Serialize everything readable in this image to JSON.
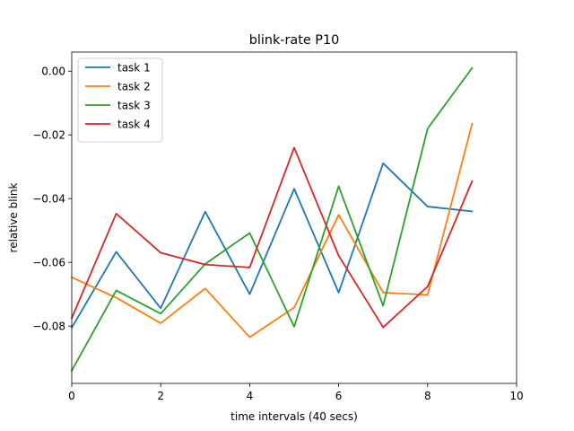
{
  "chart_data": {
    "type": "line",
    "title": "blink-rate P10",
    "xlabel": "time intervals (40 secs)",
    "ylabel": "relative blink",
    "xlim": [
      0,
      10
    ],
    "ylim": [
      -0.098,
      0.006
    ],
    "xticks": [
      0,
      2,
      4,
      6,
      8,
      10
    ],
    "xtick_labels": [
      "0",
      "2",
      "4",
      "6",
      "8",
      "10"
    ],
    "yticks": [
      0.0,
      -0.02,
      -0.04,
      -0.06,
      -0.08
    ],
    "ytick_labels": [
      "0.00",
      "−0.02",
      "−0.04",
      "−0.06",
      "−0.08"
    ],
    "grid": false,
    "legend_position": "top-left",
    "x": [
      0,
      1,
      2,
      3,
      4,
      5,
      6,
      7,
      8,
      9
    ],
    "series": [
      {
        "name": "task 1",
        "color": "#1f77b4",
        "values": [
          -0.0805,
          -0.0567,
          -0.0744,
          -0.0441,
          -0.07,
          -0.0369,
          -0.0695,
          -0.0289,
          -0.0425,
          -0.044
        ]
      },
      {
        "name": "task 2",
        "color": "#ff7f0e",
        "values": [
          -0.0647,
          -0.0711,
          -0.0791,
          -0.0682,
          -0.0835,
          -0.0742,
          -0.0451,
          -0.0695,
          -0.0702,
          -0.0165
        ]
      },
      {
        "name": "task 3",
        "color": "#2ca02c",
        "values": [
          -0.094,
          -0.0688,
          -0.0761,
          -0.0605,
          -0.0508,
          -0.0802,
          -0.0361,
          -0.0736,
          -0.018,
          0.001
        ]
      },
      {
        "name": "task 4",
        "color": "#d62728",
        "values": [
          -0.0775,
          -0.0447,
          -0.057,
          -0.0607,
          -0.0616,
          -0.024,
          -0.0579,
          -0.0804,
          -0.0676,
          -0.0345
        ]
      }
    ]
  }
}
